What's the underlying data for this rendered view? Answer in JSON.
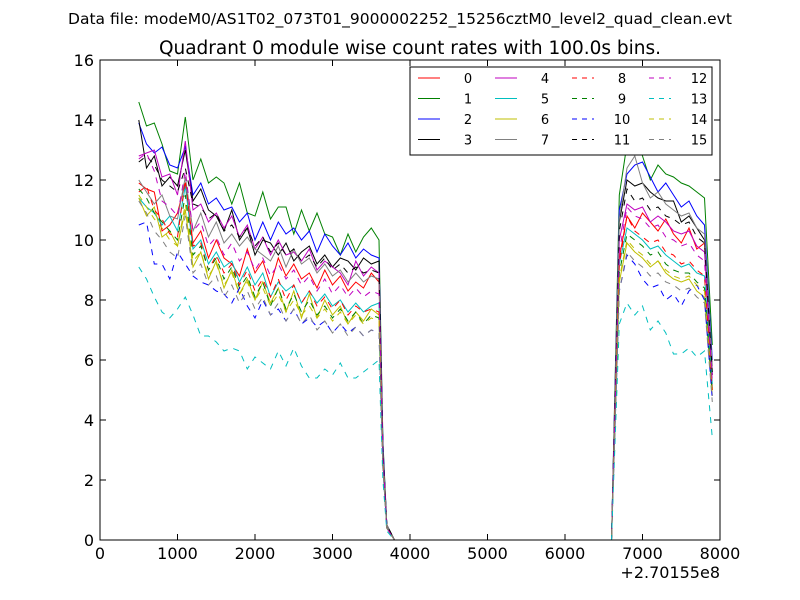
{
  "chart_data": {
    "type": "line",
    "suptitle": "Data file: modeM0/AS1T02_073T01_9000002252_15256cztM0_level2_quad_clean.evt",
    "title": "Quadrant 0 module wise count rates with 100.0s bins.",
    "xlabel": "",
    "ylabel": "",
    "x_offset_label": "+2.70155e8",
    "xlim": [
      0,
      8000
    ],
    "ylim": [
      0,
      16
    ],
    "xticks": [
      0,
      1000,
      2000,
      3000,
      4000,
      5000,
      6000,
      7000,
      8000
    ],
    "yticks": [
      0,
      2,
      4,
      6,
      8,
      10,
      12,
      14,
      16
    ],
    "legend_position": "top-right",
    "legend_columns": 4,
    "x": [
      500,
      600,
      700,
      800,
      900,
      1000,
      1100,
      1200,
      1300,
      1400,
      1500,
      1600,
      1700,
      1800,
      1900,
      2000,
      2100,
      2200,
      2300,
      2400,
      2500,
      2600,
      2700,
      2800,
      2900,
      3000,
      3100,
      3200,
      3300,
      3400,
      3500,
      3600,
      3650,
      3700,
      3800,
      3900,
      4000,
      4500,
      5000,
      5500,
      6000,
      6500,
      6600,
      6700,
      6800,
      6900,
      7000,
      7100,
      7200,
      7300,
      7400,
      7500,
      7600,
      7700,
      7800,
      7900
    ],
    "series": [
      {
        "name": "0",
        "color": "#ff0000",
        "dash": "solid",
        "values": [
          11.9,
          11.7,
          11.6,
          10.3,
          10.5,
          10.9,
          11.9,
          9.9,
          10.3,
          9.4,
          10.0,
          9.4,
          9.2,
          8.8,
          9.7,
          8.9,
          9.3,
          8.5,
          9.4,
          8.8,
          9.2,
          8.7,
          8.9,
          8.4,
          9.0,
          8.5,
          8.8,
          8.3,
          8.6,
          8.4,
          8.9,
          8.6,
          3.0,
          0.5,
          0,
          0,
          0,
          0,
          0,
          0,
          0,
          0,
          0,
          9.4,
          10.8,
          10.4,
          10.9,
          10.6,
          10.3,
          10.7,
          10.2,
          9.9,
          10.4,
          9.7,
          9.9,
          5.0
        ]
      },
      {
        "name": "1",
        "color": "#008000",
        "dash": "solid",
        "values": [
          14.6,
          13.8,
          13.9,
          13.2,
          12.3,
          12.2,
          14.1,
          12.0,
          12.7,
          11.9,
          12.1,
          11.9,
          11.2,
          11.9,
          10.9,
          10.8,
          11.6,
          10.7,
          11.1,
          11.1,
          10.2,
          11.0,
          10.3,
          10.9,
          10.2,
          10.1,
          9.5,
          10.2,
          9.6,
          10.1,
          10.4,
          10.0,
          3.3,
          0.5,
          0,
          0,
          0,
          0,
          0,
          0,
          0,
          0,
          0,
          11.5,
          13.2,
          13.5,
          12.8,
          12.0,
          12.5,
          12.2,
          12.1,
          11.9,
          11.8,
          11.6,
          11.4,
          6.5
        ]
      },
      {
        "name": "2",
        "color": "#0000ff",
        "dash": "solid",
        "values": [
          13.9,
          13.2,
          12.9,
          13.1,
          12.5,
          12.4,
          13.1,
          11.5,
          11.9,
          11.2,
          11.4,
          11.0,
          11.1,
          10.6,
          10.9,
          10.0,
          10.6,
          10.0,
          10.6,
          10.2,
          10.4,
          10.0,
          10.3,
          9.6,
          10.2,
          9.8,
          9.5,
          9.9,
          9.4,
          9.7,
          9.5,
          9.4,
          3.2,
          0.5,
          0,
          0,
          0,
          0,
          0,
          0,
          0,
          0,
          0,
          11.0,
          12.2,
          12.5,
          12.6,
          12.1,
          11.6,
          11.9,
          11.5,
          11.1,
          11.3,
          10.8,
          10.5,
          6.0
        ]
      },
      {
        "name": "3",
        "color": "#000000",
        "dash": "solid",
        "values": [
          14.0,
          12.4,
          12.8,
          11.8,
          12.1,
          11.8,
          13.0,
          11.3,
          11.7,
          11.0,
          10.8,
          10.3,
          11.0,
          10.0,
          10.4,
          9.5,
          10.0,
          9.9,
          9.5,
          9.9,
          9.3,
          9.6,
          9.8,
          9.2,
          9.5,
          9.1,
          9.4,
          9.3,
          9.0,
          9.4,
          9.2,
          9.3,
          3.0,
          0.5,
          0,
          0,
          0,
          0,
          0,
          0,
          0,
          0,
          0,
          10.6,
          12.0,
          11.8,
          11.9,
          11.6,
          11.4,
          11.3,
          11.3,
          10.6,
          10.8,
          10.4,
          10.0,
          5.5
        ]
      },
      {
        "name": "4",
        "color": "#bf00bf",
        "dash": "solid",
        "values": [
          12.8,
          12.9,
          13.0,
          12.1,
          12.2,
          11.5,
          13.3,
          11.0,
          11.2,
          10.6,
          10.9,
          10.4,
          10.8,
          10.1,
          10.5,
          9.7,
          10.1,
          9.5,
          10.0,
          9.5,
          9.6,
          9.3,
          9.7,
          9.0,
          9.3,
          9.1,
          8.9,
          8.5,
          9.3,
          8.8,
          9.1,
          8.9,
          2.9,
          0.4,
          0,
          0,
          0,
          0,
          0,
          0,
          0,
          0,
          0,
          10.0,
          11.2,
          11.0,
          11.1,
          10.6,
          10.8,
          10.6,
          10.3,
          10.2,
          10.3,
          9.8,
          9.6,
          5.5
        ]
      },
      {
        "name": "5",
        "color": "#00bfbf",
        "dash": "solid",
        "values": [
          11.4,
          11.1,
          10.9,
          10.5,
          10.8,
          10.3,
          11.8,
          9.7,
          10.0,
          9.2,
          9.6,
          9.1,
          9.3,
          8.6,
          9.1,
          8.5,
          8.9,
          8.1,
          8.6,
          8.3,
          8.5,
          7.9,
          8.3,
          7.9,
          8.2,
          7.8,
          8.0,
          7.6,
          7.9,
          7.6,
          7.8,
          7.9,
          2.7,
          0.4,
          0,
          0,
          0,
          0,
          0,
          0,
          0,
          0,
          0,
          9.2,
          10.4,
          10.2,
          10.0,
          9.7,
          9.8,
          9.5,
          9.3,
          9.1,
          9.2,
          8.9,
          8.8,
          5.2
        ]
      },
      {
        "name": "6",
        "color": "#bfbf00",
        "dash": "solid",
        "values": [
          11.4,
          10.8,
          11.1,
          10.1,
          10.3,
          9.8,
          11.0,
          9.1,
          9.6,
          8.7,
          9.3,
          8.4,
          9.0,
          8.2,
          8.7,
          8.0,
          8.6,
          7.9,
          8.4,
          7.6,
          8.3,
          7.4,
          8.2,
          7.4,
          8.0,
          7.5,
          7.8,
          7.2,
          7.6,
          7.3,
          7.7,
          7.5,
          2.6,
          0.4,
          0,
          0,
          0,
          0,
          0,
          0,
          0,
          0,
          0,
          8.6,
          9.9,
          9.6,
          9.4,
          9.1,
          9.3,
          8.9,
          8.7,
          8.6,
          8.7,
          8.3,
          8.1,
          4.8
        ]
      },
      {
        "name": "7",
        "color": "#808080",
        "dash": "solid",
        "values": [
          12.0,
          11.6,
          11.2,
          11.5,
          10.8,
          10.7,
          12.1,
          10.3,
          10.9,
          10.1,
          10.6,
          9.9,
          10.2,
          9.8,
          10.1,
          9.7,
          9.5,
          9.3,
          9.8,
          9.1,
          9.7,
          9.2,
          9.4,
          8.9,
          9.2,
          8.8,
          9.0,
          8.6,
          8.9,
          8.6,
          8.8,
          8.7,
          2.9,
          0.5,
          0,
          0,
          0,
          0,
          0,
          0,
          0,
          0,
          0,
          10.7,
          12.4,
          12.8,
          11.9,
          11.4,
          11.6,
          11.2,
          11.0,
          10.8,
          10.9,
          10.4,
          10.2,
          5.8
        ]
      },
      {
        "name": "8",
        "color": "#ff0000",
        "dash": "dashed",
        "values": [
          11.6,
          11.8,
          11.0,
          10.7,
          10.2,
          10.1,
          12.0,
          9.8,
          9.9,
          9.0,
          9.5,
          8.9,
          9.2,
          8.5,
          9.0,
          8.3,
          8.7,
          8.1,
          8.7,
          8.0,
          8.5,
          7.9,
          8.3,
          7.8,
          8.1,
          7.7,
          8.0,
          7.5,
          7.8,
          7.6,
          7.7,
          7.6,
          2.6,
          0.4,
          0,
          0,
          0,
          0,
          0,
          0,
          0,
          0,
          0,
          9.2,
          10.8,
          10.3,
          10.1,
          9.9,
          10.0,
          9.6,
          9.5,
          9.2,
          9.3,
          9.0,
          8.8,
          5.0
        ]
      },
      {
        "name": "9",
        "color": "#008000",
        "dash": "dashed",
        "values": [
          11.7,
          11.4,
          10.9,
          10.6,
          10.3,
          10.0,
          11.5,
          9.5,
          9.8,
          9.0,
          9.4,
          8.7,
          9.1,
          8.4,
          8.8,
          8.1,
          8.6,
          7.8,
          8.4,
          7.7,
          8.2,
          7.6,
          8.0,
          7.5,
          7.8,
          7.4,
          7.7,
          7.3,
          7.6,
          7.2,
          7.5,
          7.4,
          2.6,
          0.4,
          0,
          0,
          0,
          0,
          0,
          0,
          0,
          0,
          0,
          8.9,
          10.2,
          10.0,
          9.8,
          9.5,
          9.6,
          9.2,
          9.0,
          8.9,
          8.9,
          8.6,
          8.4,
          4.9
        ]
      },
      {
        "name": "10",
        "color": "#0000ff",
        "dash": "dashed",
        "values": [
          10.5,
          10.6,
          9.2,
          9.2,
          8.7,
          9.6,
          9.2,
          8.8,
          8.6,
          8.5,
          8.3,
          8.2,
          7.9,
          8.4,
          7.8,
          7.4,
          8.0,
          7.5,
          7.7,
          7.3,
          7.7,
          7.2,
          7.4,
          7.1,
          7.3,
          6.9,
          7.2,
          6.9,
          7.1,
          6.8,
          7.0,
          6.9,
          2.4,
          0.4,
          0,
          0,
          0,
          0,
          0,
          0,
          0,
          0,
          0,
          8.3,
          9.5,
          9.2,
          8.7,
          8.4,
          8.5,
          8.0,
          8.2,
          7.8,
          8.3,
          8.5,
          8.0,
          4.7
        ]
      },
      {
        "name": "11",
        "color": "#000000",
        "dash": "dashed",
        "values": [
          12.6,
          12.8,
          12.5,
          12.0,
          11.8,
          11.6,
          12.4,
          11.2,
          11.1,
          10.7,
          10.9,
          10.3,
          10.5,
          10.1,
          10.4,
          9.8,
          10.1,
          9.6,
          9.9,
          9.5,
          9.7,
          9.3,
          9.5,
          9.1,
          9.4,
          9.0,
          9.2,
          8.9,
          9.1,
          8.9,
          9.0,
          8.9,
          3.0,
          0.5,
          0,
          0,
          0,
          0,
          0,
          0,
          0,
          0,
          0,
          10.3,
          11.7,
          11.3,
          11.4,
          11.0,
          11.1,
          10.8,
          10.7,
          10.5,
          10.6,
          10.1,
          9.9,
          5.6
        ]
      },
      {
        "name": "12",
        "color": "#bf00bf",
        "dash": "dashed",
        "values": [
          12.7,
          12.9,
          12.3,
          11.3,
          11.1,
          10.8,
          12.3,
          10.3,
          10.6,
          9.8,
          10.1,
          9.5,
          9.9,
          9.3,
          9.6,
          9.0,
          9.4,
          8.8,
          9.2,
          8.7,
          9.0,
          8.5,
          8.8,
          8.3,
          8.7,
          8.2,
          8.5,
          8.1,
          8.4,
          8.1,
          8.3,
          8.2,
          2.8,
          0.4,
          0,
          0,
          0,
          0,
          0,
          0,
          0,
          0,
          0,
          9.6,
          11.1,
          10.8,
          10.7,
          10.4,
          10.5,
          10.1,
          10.0,
          9.8,
          9.9,
          9.5,
          9.3,
          5.3
        ]
      },
      {
        "name": "13",
        "color": "#00bfbf",
        "dash": "dashed",
        "values": [
          9.1,
          8.7,
          8.1,
          7.6,
          7.4,
          7.7,
          8.1,
          7.5,
          6.8,
          6.8,
          6.6,
          6.3,
          6.4,
          6.3,
          5.7,
          6.1,
          5.9,
          5.7,
          6.3,
          5.8,
          6.4,
          5.8,
          5.4,
          5.4,
          5.7,
          5.5,
          5.9,
          5.4,
          5.4,
          5.6,
          5.8,
          6.0,
          2.0,
          0.3,
          0,
          0,
          0,
          0,
          0,
          0,
          0,
          0,
          0,
          7.2,
          7.9,
          7.5,
          7.8,
          7.0,
          7.3,
          6.9,
          6.2,
          6.2,
          6.4,
          6.1,
          6.3,
          3.4
        ]
      },
      {
        "name": "14",
        "color": "#bfbf00",
        "dash": "dashed",
        "values": [
          11.5,
          11.1,
          10.7,
          10.4,
          10.0,
          9.8,
          11.2,
          9.3,
          9.6,
          8.8,
          9.2,
          8.5,
          8.9,
          8.2,
          8.6,
          8.0,
          8.4,
          7.8,
          8.2,
          7.6,
          8.0,
          7.5,
          7.8,
          7.4,
          7.7,
          7.3,
          7.6,
          7.2,
          7.5,
          7.2,
          7.4,
          7.3,
          2.5,
          0.4,
          0,
          0,
          0,
          0,
          0,
          0,
          0,
          0,
          0,
          8.7,
          10.0,
          9.7,
          9.5,
          9.2,
          9.3,
          9.0,
          8.8,
          8.7,
          8.8,
          8.5,
          8.3,
          4.8
        ]
      },
      {
        "name": "15",
        "color": "#808080",
        "dash": "dashed",
        "values": [
          11.3,
          10.9,
          10.3,
          10.0,
          9.6,
          9.4,
          10.8,
          8.9,
          9.2,
          8.5,
          8.8,
          8.1,
          8.5,
          7.9,
          8.3,
          7.7,
          8.1,
          7.5,
          7.9,
          7.3,
          7.7,
          7.2,
          7.5,
          7.0,
          7.3,
          6.9,
          7.2,
          6.8,
          7.1,
          6.8,
          7.0,
          6.9,
          2.4,
          0.4,
          0,
          0,
          0,
          0,
          0,
          0,
          0,
          0,
          0,
          8.3,
          9.6,
          9.3,
          9.1,
          8.8,
          8.9,
          8.6,
          8.5,
          8.3,
          8.4,
          8.1,
          7.9,
          4.6
        ]
      }
    ]
  }
}
